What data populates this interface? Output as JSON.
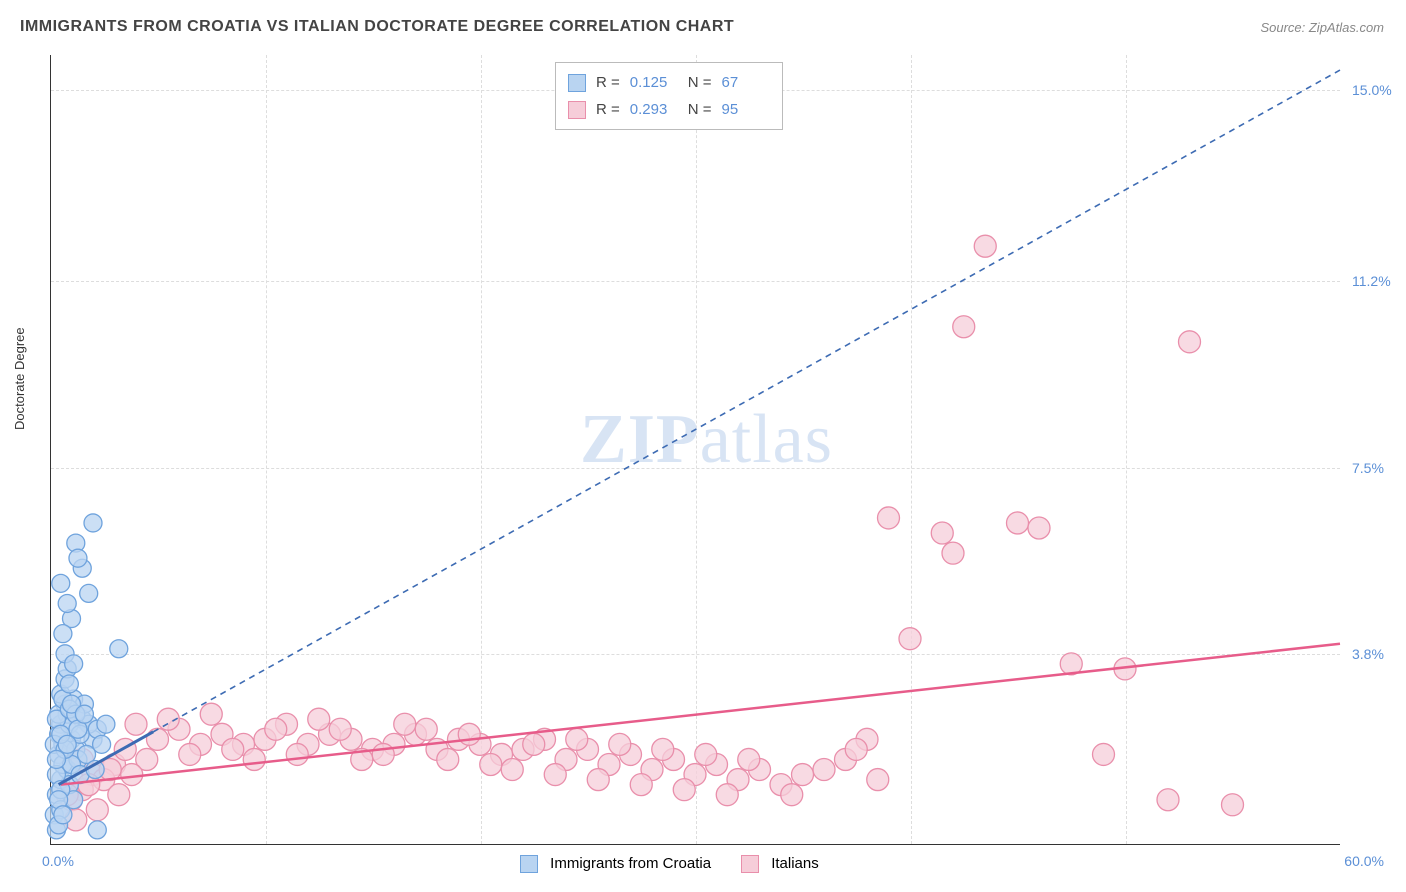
{
  "title": "IMMIGRANTS FROM CROATIA VS ITALIAN DOCTORATE DEGREE CORRELATION CHART",
  "source": "Source: ZipAtlas.com",
  "watermark": "ZIPatlas",
  "ylabel": "Doctorate Degree",
  "chart": {
    "type": "scatter",
    "xlim": [
      0,
      60
    ],
    "ylim": [
      0,
      15.7
    ],
    "x_origin_label": "0.0%",
    "x_max_label": "60.0%",
    "y_ticks": [
      3.8,
      7.5,
      11.2,
      15.0
    ],
    "y_tick_labels": [
      "3.8%",
      "7.5%",
      "11.2%",
      "15.0%"
    ],
    "x_minor_ticks": [
      10,
      20,
      30,
      40,
      50
    ],
    "background_color": "#ffffff",
    "grid_color": "#dddddd",
    "axis_color": "#333333",
    "tick_label_color": "#5b8fd6"
  },
  "series": {
    "croatia": {
      "label": "Immigrants from Croatia",
      "fill": "#b9d4f1",
      "stroke": "#6fa3dd",
      "trend_color": "#3d6bb3",
      "trend_dash": "6,5",
      "marker_r": 9,
      "R": "0.125",
      "N": "67",
      "trend": {
        "x1": 0.4,
        "y1": 1.2,
        "x2": 60.0,
        "y2": 15.4,
        "solid_until_x": 4.8
      },
      "points": [
        [
          0.3,
          1.0
        ],
        [
          0.5,
          1.3
        ],
        [
          0.4,
          1.8
        ],
        [
          0.6,
          2.0
        ],
        [
          0.8,
          1.5
        ],
        [
          1.0,
          2.1
        ],
        [
          0.5,
          2.4
        ],
        [
          0.7,
          2.8
        ],
        [
          0.2,
          0.6
        ],
        [
          0.3,
          0.3
        ],
        [
          1.2,
          1.9
        ],
        [
          0.9,
          1.2
        ],
        [
          0.4,
          2.2
        ],
        [
          0.6,
          1.6
        ],
        [
          1.5,
          2.5
        ],
        [
          1.1,
          2.9
        ],
        [
          0.8,
          2.6
        ],
        [
          0.5,
          3.0
        ],
        [
          0.7,
          3.3
        ],
        [
          0.3,
          1.4
        ],
        [
          2.0,
          2.1
        ],
        [
          1.8,
          2.4
        ],
        [
          1.3,
          1.7
        ],
        [
          1.6,
          2.8
        ],
        [
          2.2,
          2.3
        ],
        [
          0.9,
          2.4
        ],
        [
          0.5,
          0.7
        ],
        [
          1.0,
          1.6
        ],
        [
          0.4,
          2.6
        ],
        [
          1.4,
          2.2
        ],
        [
          0.6,
          2.9
        ],
        [
          0.8,
          3.5
        ],
        [
          1.1,
          0.9
        ],
        [
          0.2,
          2.0
        ],
        [
          0.3,
          2.5
        ],
        [
          0.5,
          1.1
        ],
        [
          0.7,
          1.9
        ],
        [
          0.9,
          2.7
        ],
        [
          1.2,
          2.6
        ],
        [
          0.4,
          0.9
        ],
        [
          3.2,
          3.9
        ],
        [
          1.0,
          4.5
        ],
        [
          0.6,
          4.2
        ],
        [
          1.8,
          5.0
        ],
        [
          1.5,
          5.5
        ],
        [
          1.2,
          6.0
        ],
        [
          2.0,
          6.4
        ],
        [
          1.3,
          5.7
        ],
        [
          0.8,
          4.8
        ],
        [
          0.5,
          5.2
        ],
        [
          0.7,
          3.8
        ],
        [
          0.9,
          3.2
        ],
        [
          1.1,
          3.6
        ],
        [
          1.4,
          1.4
        ],
        [
          1.7,
          1.8
        ],
        [
          2.1,
          1.5
        ],
        [
          2.4,
          2.0
        ],
        [
          2.6,
          2.4
        ],
        [
          0.4,
          0.4
        ],
        [
          0.6,
          0.6
        ],
        [
          0.3,
          1.7
        ],
        [
          0.5,
          2.2
        ],
        [
          0.8,
          2.0
        ],
        [
          1.0,
          2.8
        ],
        [
          1.3,
          2.3
        ],
        [
          1.6,
          2.6
        ],
        [
          2.2,
          0.3
        ]
      ]
    },
    "italians": {
      "label": "Italians",
      "fill": "#f6cdd9",
      "stroke": "#e98fab",
      "trend_color": "#e75c8a",
      "trend_dash": "none",
      "marker_r": 11,
      "R": "0.293",
      "N": "95",
      "trend": {
        "x1": 0.5,
        "y1": 1.2,
        "x2": 60.0,
        "y2": 4.0
      },
      "points": [
        [
          2.0,
          1.4
        ],
        [
          3.0,
          1.6
        ],
        [
          1.5,
          1.1
        ],
        [
          2.5,
          1.3
        ],
        [
          4.0,
          2.4
        ],
        [
          5.0,
          2.1
        ],
        [
          3.5,
          1.9
        ],
        [
          4.5,
          1.7
        ],
        [
          6.0,
          2.3
        ],
        [
          7.0,
          2.0
        ],
        [
          5.5,
          2.5
        ],
        [
          6.5,
          1.8
        ],
        [
          8.0,
          2.2
        ],
        [
          9.0,
          2.0
        ],
        [
          7.5,
          2.6
        ],
        [
          8.5,
          1.9
        ],
        [
          10.0,
          2.1
        ],
        [
          11.0,
          2.4
        ],
        [
          9.5,
          1.7
        ],
        [
          10.5,
          2.3
        ],
        [
          12.0,
          2.0
        ],
        [
          13.0,
          2.2
        ],
        [
          11.5,
          1.8
        ],
        [
          12.5,
          2.5
        ],
        [
          14.0,
          2.1
        ],
        [
          15.0,
          1.9
        ],
        [
          13.5,
          2.3
        ],
        [
          14.5,
          1.7
        ],
        [
          16.0,
          2.0
        ],
        [
          17.0,
          2.2
        ],
        [
          15.5,
          1.8
        ],
        [
          16.5,
          2.4
        ],
        [
          18.0,
          1.9
        ],
        [
          19.0,
          2.1
        ],
        [
          17.5,
          2.3
        ],
        [
          18.5,
          1.7
        ],
        [
          20.0,
          2.0
        ],
        [
          21.0,
          1.8
        ],
        [
          19.5,
          2.2
        ],
        [
          20.5,
          1.6
        ],
        [
          22.0,
          1.9
        ],
        [
          23.0,
          2.1
        ],
        [
          21.5,
          1.5
        ],
        [
          22.5,
          2.0
        ],
        [
          24.0,
          1.7
        ],
        [
          25.0,
          1.9
        ],
        [
          23.5,
          1.4
        ],
        [
          24.5,
          2.1
        ],
        [
          26.0,
          1.6
        ],
        [
          27.0,
          1.8
        ],
        [
          25.5,
          1.3
        ],
        [
          26.5,
          2.0
        ],
        [
          28.0,
          1.5
        ],
        [
          29.0,
          1.7
        ],
        [
          27.5,
          1.2
        ],
        [
          28.5,
          1.9
        ],
        [
          30.0,
          1.4
        ],
        [
          31.0,
          1.6
        ],
        [
          29.5,
          1.1
        ],
        [
          30.5,
          1.8
        ],
        [
          32.0,
          1.3
        ],
        [
          33.0,
          1.5
        ],
        [
          31.5,
          1.0
        ],
        [
          32.5,
          1.7
        ],
        [
          34.0,
          1.2
        ],
        [
          35.0,
          1.4
        ],
        [
          34.5,
          1.0
        ],
        [
          36.0,
          1.5
        ],
        [
          37.0,
          1.7
        ],
        [
          38.0,
          2.1
        ],
        [
          37.5,
          1.9
        ],
        [
          38.5,
          1.3
        ],
        [
          40.0,
          4.1
        ],
        [
          39.0,
          6.5
        ],
        [
          42.0,
          5.8
        ],
        [
          41.5,
          6.2
        ],
        [
          42.5,
          10.3
        ],
        [
          45.0,
          6.4
        ],
        [
          46.0,
          6.3
        ],
        [
          43.5,
          11.9
        ],
        [
          49.0,
          1.8
        ],
        [
          47.5,
          3.6
        ],
        [
          50.0,
          3.5
        ],
        [
          52.0,
          0.9
        ],
        [
          53.0,
          10.0
        ],
        [
          55.0,
          0.8
        ],
        [
          1.0,
          0.9
        ],
        [
          2.2,
          0.7
        ],
        [
          1.8,
          1.2
        ],
        [
          3.2,
          1.0
        ],
        [
          1.2,
          0.5
        ],
        [
          2.8,
          1.5
        ],
        [
          0.8,
          1.0
        ],
        [
          1.5,
          1.7
        ],
        [
          3.8,
          1.4
        ]
      ]
    }
  }
}
